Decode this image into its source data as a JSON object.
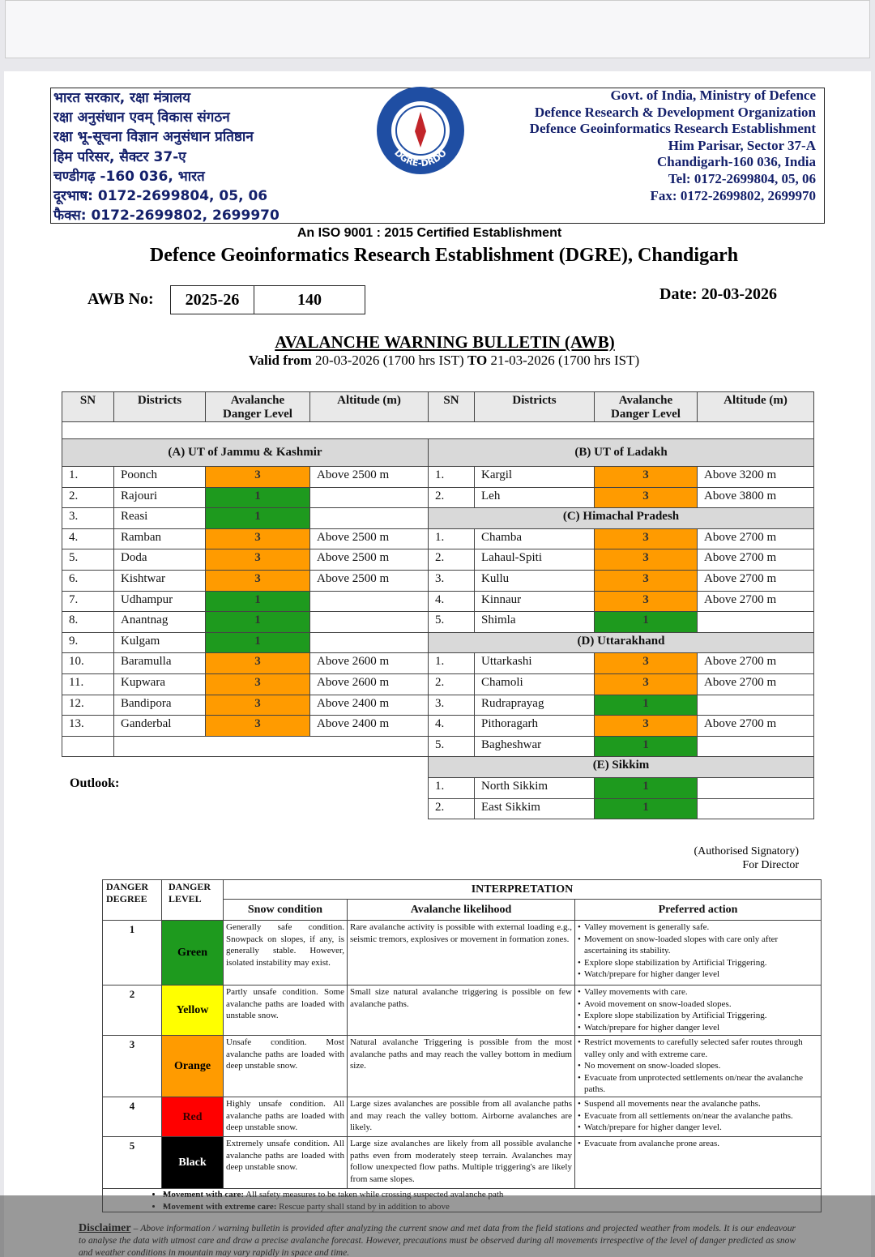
{
  "header": {
    "hindi_lines": [
      "भारत सरकार, रक्षा मंत्रालय",
      "रक्षा अनुसंधान एवम् विकास संगठन",
      "रक्षा भू-सूचना विज्ञान अनुसंधान प्रतिष्ठान",
      "हिम परिसर, सैक्टर 37-ए",
      "चण्डीगढ़ -160 036, भारत",
      "दूरभाष: 0172-2699804, 05, 06",
      "फैक्स: 0172-2699802, 2699970"
    ],
    "logo_label": "DGRE-DRDO",
    "english_lines": [
      "Govt. of India, Ministry of Defence",
      "Defence Research & Development Organization",
      "Defence Geoinformatics Research Establishment",
      "Him Parisar, Sector 37-A",
      "Chandigarh-160 036, India",
      "Tel: 0172-2699804, 05, 06",
      "Fax: 0172-2699802, 2699970"
    ]
  },
  "iso": "An ISO 9001 : 2015 Certified Establishment",
  "org_title": "Defence Geoinformatics Research Establishment (DGRE), Chandigarh",
  "awb": {
    "label": "AWB No:",
    "year": "2025-26",
    "number": "140",
    "date": "Date: 20-03-2026"
  },
  "bulletin": {
    "title": "AVALANCHE WARNING BULLETIN (AWB)",
    "valid_label": "Valid from",
    "from": "20-03-2026 (1700 hrs IST)",
    "to_label": "TO",
    "to": "21-03-2026 (1700 hrs IST)"
  },
  "table": {
    "headers": [
      "SN",
      "Districts",
      "Avalanche Danger Level",
      "Altitude (m)"
    ],
    "left": {
      "title": "(A) UT of Jammu & Kashmir",
      "rows": [
        {
          "sn": "1.",
          "district": "Poonch",
          "level": "3",
          "altitude": "Above 2500 m"
        },
        {
          "sn": "2.",
          "district": "Rajouri",
          "level": "1"
        },
        {
          "sn": "3.",
          "district": "Reasi",
          "level": "1"
        },
        {
          "sn": "4.",
          "district": "Ramban",
          "level": "3",
          "altitude": "Above 2500 m"
        },
        {
          "sn": "5.",
          "district": "Doda",
          "level": "3",
          "altitude": "Above 2500 m"
        },
        {
          "sn": "6.",
          "district": "Kishtwar",
          "level": "3",
          "altitude": "Above 2500 m"
        },
        {
          "sn": "7.",
          "district": "Udhampur",
          "level": "1"
        },
        {
          "sn": "8.",
          "district": "Anantnag",
          "level": "1"
        },
        {
          "sn": "9.",
          "district": "Kulgam",
          "level": "1"
        },
        {
          "sn": "10.",
          "district": "Baramulla",
          "level": "3",
          "altitude": "Above 2600 m"
        },
        {
          "sn": "11.",
          "district": "Kupwara",
          "level": "3",
          "altitude": "Above 2600 m"
        },
        {
          "sn": "12.",
          "district": "Bandipora",
          "level": "3",
          "altitude": "Above 2400 m"
        },
        {
          "sn": "13.",
          "district": "Ganderbal",
          "level": "3",
          "altitude": "Above 2400 m"
        }
      ]
    },
    "right": [
      {
        "title": "(B) UT of Ladakh",
        "rows": [
          {
            "sn": "1.",
            "district": "Kargil",
            "level": "3",
            "altitude": "Above 3200 m"
          },
          {
            "sn": "2.",
            "district": "Leh",
            "level": "3",
            "altitude": "Above 3800 m"
          }
        ]
      },
      {
        "title": "(C) Himachal Pradesh",
        "rows": [
          {
            "sn": "1.",
            "district": "Chamba",
            "level": "3",
            "altitude": "Above 2700 m"
          },
          {
            "sn": "2.",
            "district": "Lahaul-Spiti",
            "level": "3",
            "altitude": "Above 2700 m"
          },
          {
            "sn": "3.",
            "district": "Kullu",
            "level": "3",
            "altitude": "Above 2700 m"
          },
          {
            "sn": "4.",
            "district": "Kinnaur",
            "level": "3",
            "altitude": "Above 2700 m"
          },
          {
            "sn": "5.",
            "district": "Shimla",
            "level": "1"
          }
        ]
      },
      {
        "title": "(D) Uttarakhand",
        "rows": [
          {
            "sn": "1.",
            "district": "Uttarkashi",
            "level": "3",
            "altitude": "Above 2700 m"
          },
          {
            "sn": "2.",
            "district": "Chamoli",
            "level": "3",
            "altitude": "Above 2700 m"
          },
          {
            "sn": "3.",
            "district": "Rudraprayag",
            "level": "1"
          },
          {
            "sn": "4.",
            "district": "Pithoragarh",
            "level": "3",
            "altitude": "Above 2700 m"
          },
          {
            "sn": "5.",
            "district": "Bagheshwar",
            "level": "1"
          }
        ]
      },
      {
        "title": "(E) Sikkim",
        "rows": [
          {
            "sn": "1.",
            "district": "North Sikkim",
            "level": "1"
          },
          {
            "sn": "2.",
            "district": "East Sikkim",
            "level": "1"
          }
        ]
      }
    ]
  },
  "outlook": "Outlook:",
  "signatory": [
    "(Authorised Signatory)",
    "For Director"
  ],
  "danger_table": {
    "headers": {
      "degree": "DANGER DEGREE",
      "level": "DANGER LEVEL",
      "interpretation": "INTERPRETATION",
      "snow": "Snow condition",
      "likelihood": "Avalanche likelihood",
      "action": "Preferred action"
    },
    "rows": [
      {
        "degree": "1",
        "level": "Green",
        "color": "#1e9a1e",
        "text_color": "#000000",
        "snow": "Generally safe condition. Snowpack on slopes, if any, is generally stable. However, isolated instability may exist.",
        "likelihood": "Rare avalanche activity is possible with external loading e.g., seismic tremors, explosives or movement in formation zones.",
        "actions": [
          "Valley movement is generally safe.",
          "Movement on snow-loaded slopes with care only after ascertaining its stability.",
          "Explore slope stabilization by Artificial Triggering.",
          "Watch/prepare for higher danger level"
        ]
      },
      {
        "degree": "2",
        "level": "Yellow",
        "color": "#ffff00",
        "text_color": "#000000",
        "snow": "Partly unsafe condition. Some avalanche paths are loaded with unstable snow.",
        "likelihood": "Small size natural avalanche triggering is possible on few avalanche paths.",
        "actions": [
          "Valley movements with care.",
          "Avoid movement on snow-loaded slopes.",
          "Explore slope stabilization by Artificial Triggering.",
          "Watch/prepare for higher danger level"
        ]
      },
      {
        "degree": "3",
        "level": "Orange",
        "color": "#ff9b00",
        "text_color": "#000000",
        "snow": "Unsafe condition. Most avalanche paths are loaded with deep unstable snow.",
        "likelihood": "Natural avalanche Triggering is possible from the most avalanche paths and may reach the valley bottom in medium size.",
        "actions": [
          "Restrict movements to carefully selected safer routes through valley only and with extreme care.",
          "No movement on snow-loaded slopes.",
          "Evacuate from unprotected settlements on/near the avalanche paths."
        ]
      },
      {
        "degree": "4",
        "level": "Red",
        "color": "#ff0000",
        "text_color": "#3a0000",
        "snow": "Highly unsafe condition. All avalanche paths are loaded with deep unstable snow.",
        "likelihood": "Large sizes avalanches are possible from all avalanche paths and may reach the valley bottom. Airborne avalanches are likely.",
        "actions": [
          "Suspend all movements near the avalanche paths.",
          "Evacuate from all settlements on/near the avalanche paths.",
          "Watch/prepare for higher danger level."
        ]
      },
      {
        "degree": "5",
        "level": "Black",
        "color": "#000000",
        "text_color": "#ffffff",
        "snow": "Extremely unsafe condition. All avalanche paths are loaded with deep unstable snow.",
        "likelihood": "Large size avalanches are likely from all possible avalanche paths even from moderately steep terrain. Avalanches may follow unexpected flow paths. Multiple triggering's are likely from same slopes.",
        "actions": [
          "Evacuate from avalanche prone areas."
        ]
      }
    ],
    "notes": [
      {
        "label": "Movement with care:",
        "text": "All safety measures to be taken while crossing suspected avalanche path"
      },
      {
        "label": "Movement with extreme care:",
        "text": "Rescue party shall stand by in addition to above"
      }
    ]
  },
  "disclaimer": {
    "label": "Disclaimer",
    "text": "Above information / warning bulletin is provided after analyzing the current snow and met data from the field stations and projected weather from models. It is our endeavour to analyse the data with utmost care and draw a precise avalanche forecast. However, precautions must be observed during all movements irrespective of the level of danger predicted as snow and weather conditions in mountain may vary rapidly in space and time."
  }
}
